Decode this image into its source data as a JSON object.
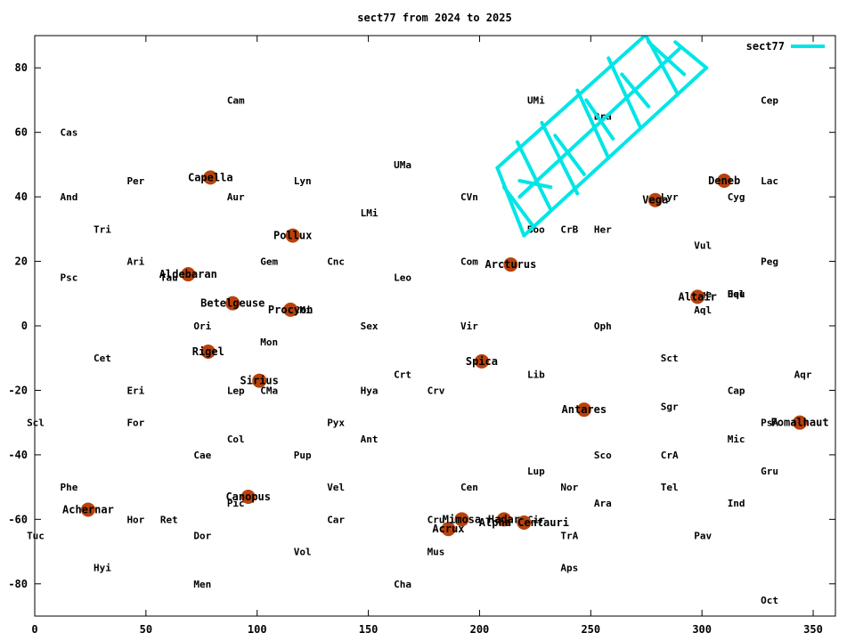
{
  "chart_data": {
    "type": "scatter",
    "title": "sect77 from 2024 to 2025",
    "xlabel": "",
    "ylabel": "",
    "xlim": [
      0,
      360
    ],
    "ylim": [
      -90,
      90
    ],
    "x_ticks": [
      0,
      50,
      100,
      150,
      200,
      250,
      300,
      350
    ],
    "y_ticks": [
      -80,
      -60,
      -40,
      -20,
      0,
      20,
      40,
      60,
      80
    ],
    "grid": false,
    "legend": {
      "position": "top-right",
      "entries": [
        "sect77"
      ]
    },
    "colors": {
      "series": "#00e5e5",
      "star": "#b8420c",
      "frame": "#000000"
    },
    "series": [
      {
        "name": "sect77",
        "segments": [
          [
            [
              208,
              49
            ],
            [
              276,
              91
            ]
          ],
          [
            [
              220,
              28
            ],
            [
              302,
              80
            ]
          ],
          [
            [
              208,
              49
            ],
            [
              220,
              28
            ]
          ],
          [
            [
              211,
              43
            ],
            [
              224,
              31
            ]
          ],
          [
            [
              217,
              57
            ],
            [
              232,
              36
            ]
          ],
          [
            [
              218,
              45
            ],
            [
              232,
              43
            ]
          ],
          [
            [
              228,
              63
            ],
            [
              244,
              41
            ]
          ],
          [
            [
              234,
              59
            ],
            [
              247,
              47
            ]
          ],
          [
            [
              244,
              73
            ],
            [
              258,
              52
            ]
          ],
          [
            [
              248,
              70
            ],
            [
              260,
              58
            ]
          ],
          [
            [
              258,
              83
            ],
            [
              272,
              62
            ]
          ],
          [
            [
              264,
              78
            ],
            [
              276,
              68
            ]
          ],
          [
            [
              274,
              91
            ],
            [
              289,
              72
            ]
          ],
          [
            [
              276,
              88
            ],
            [
              292,
              78
            ]
          ],
          [
            [
              288,
              88
            ],
            [
              302,
              80
            ]
          ],
          [
            [
              218,
              40
            ],
            [
              290,
              86
            ]
          ]
        ]
      }
    ],
    "stars": [
      {
        "name": "Capella",
        "ra": 79,
        "dec": 46
      },
      {
        "name": "Aldebaran",
        "ra": 69,
        "dec": 16
      },
      {
        "name": "Betelgeuse",
        "ra": 89,
        "dec": 7
      },
      {
        "name": "Rigel",
        "ra": 78,
        "dec": -8
      },
      {
        "name": "Sirius",
        "ra": 101,
        "dec": -17
      },
      {
        "name": "Procyon",
        "ra": 115,
        "dec": 5
      },
      {
        "name": "Pollux",
        "ra": 116,
        "dec": 28
      },
      {
        "name": "Canopus",
        "ra": 96,
        "dec": -53
      },
      {
        "name": "Achernar",
        "ra": 24,
        "dec": -57
      },
      {
        "name": "Arcturus",
        "ra": 214,
        "dec": 19
      },
      {
        "name": "Spica",
        "ra": 201,
        "dec": -11
      },
      {
        "name": "Antares",
        "ra": 247,
        "dec": -26
      },
      {
        "name": "Vega",
        "ra": 279,
        "dec": 39
      },
      {
        "name": "Deneb",
        "ra": 310,
        "dec": 45
      },
      {
        "name": "Altair",
        "ra": 298,
        "dec": 9
      },
      {
        "name": "Fomalhaut",
        "ra": 344,
        "dec": -30
      },
      {
        "name": "Acrux",
        "ra": 186,
        "dec": -63
      },
      {
        "name": "Mimosa",
        "ra": 192,
        "dec": -60
      },
      {
        "name": "Hadar",
        "ra": 211,
        "dec": -60
      },
      {
        "name": "Alpha Centauri",
        "ra": 220,
        "dec": -61
      }
    ],
    "constellations": [
      {
        "name": "Cam",
        "ra": 90,
        "dec": 70
      },
      {
        "name": "Cas",
        "ra": 15,
        "dec": 60
      },
      {
        "name": "Per",
        "ra": 45,
        "dec": 45
      },
      {
        "name": "Lyn",
        "ra": 120,
        "dec": 45
      },
      {
        "name": "UMa",
        "ra": 165,
        "dec": 50
      },
      {
        "name": "UMi",
        "ra": 225,
        "dec": 70
      },
      {
        "name": "Dra",
        "ra": 255,
        "dec": 65
      },
      {
        "name": "Cep",
        "ra": 330,
        "dec": 70
      },
      {
        "name": "And",
        "ra": 15,
        "dec": 40
      },
      {
        "name": "Aur",
        "ra": 90,
        "dec": 40
      },
      {
        "name": "CVn",
        "ra": 195,
        "dec": 40
      },
      {
        "name": "Lyr",
        "ra": 285,
        "dec": 40
      },
      {
        "name": "Cyg",
        "ra": 315,
        "dec": 40
      },
      {
        "name": "Lac",
        "ra": 330,
        "dec": 45
      },
      {
        "name": "LMi",
        "ra": 150,
        "dec": 35
      },
      {
        "name": "Tri",
        "ra": 30,
        "dec": 30
      },
      {
        "name": "Boo",
        "ra": 225,
        "dec": 30
      },
      {
        "name": "CrB",
        "ra": 240,
        "dec": 30
      },
      {
        "name": "Her",
        "ra": 255,
        "dec": 30
      },
      {
        "name": "Vul",
        "ra": 300,
        "dec": 25
      },
      {
        "name": "Ari",
        "ra": 45,
        "dec": 20
      },
      {
        "name": "Gem",
        "ra": 105,
        "dec": 20
      },
      {
        "name": "Cnc",
        "ra": 135,
        "dec": 20
      },
      {
        "name": "Com",
        "ra": 195,
        "dec": 20
      },
      {
        "name": "Peg",
        "ra": 330,
        "dec": 20
      },
      {
        "name": "Psc",
        "ra": 15,
        "dec": 15
      },
      {
        "name": "Tau",
        "ra": 60,
        "dec": 15
      },
      {
        "name": "Leo",
        "ra": 165,
        "dec": 15
      },
      {
        "name": "Sge",
        "ra": 300,
        "dec": 10
      },
      {
        "name": "Del",
        "ra": 315,
        "dec": 10
      },
      {
        "name": "Equ",
        "ra": 315,
        "dec": 10
      },
      {
        "name": "CMi",
        "ra": 120,
        "dec": 5
      },
      {
        "name": "Aql",
        "ra": 300,
        "dec": 5
      },
      {
        "name": "Ori",
        "ra": 75,
        "dec": 0
      },
      {
        "name": "Sex",
        "ra": 150,
        "dec": 0
      },
      {
        "name": "Vir",
        "ra": 195,
        "dec": 0
      },
      {
        "name": "Oph",
        "ra": 255,
        "dec": 0
      },
      {
        "name": "Mon",
        "ra": 105,
        "dec": -5
      },
      {
        "name": "Cet",
        "ra": 30,
        "dec": -10
      },
      {
        "name": "Sct",
        "ra": 285,
        "dec": -10
      },
      {
        "name": "Crt",
        "ra": 165,
        "dec": -15
      },
      {
        "name": "Lib",
        "ra": 225,
        "dec": -15
      },
      {
        "name": "Aqr",
        "ra": 345,
        "dec": -15
      },
      {
        "name": "Eri",
        "ra": 45,
        "dec": -20
      },
      {
        "name": "Lep",
        "ra": 90,
        "dec": -20
      },
      {
        "name": "CMa",
        "ra": 105,
        "dec": -20
      },
      {
        "name": "Hya",
        "ra": 150,
        "dec": -20
      },
      {
        "name": "Crv",
        "ra": 180,
        "dec": -20
      },
      {
        "name": "Cap",
        "ra": 315,
        "dec": -20
      },
      {
        "name": "Sgr",
        "ra": 285,
        "dec": -25
      },
      {
        "name": "Scl",
        "ra": 0,
        "dec": -30
      },
      {
        "name": "For",
        "ra": 45,
        "dec": -30
      },
      {
        "name": "Pyx",
        "ra": 135,
        "dec": -30
      },
      {
        "name": "PsA",
        "ra": 330,
        "dec": -30
      },
      {
        "name": "Col",
        "ra": 90,
        "dec": -35
      },
      {
        "name": "Ant",
        "ra": 150,
        "dec": -35
      },
      {
        "name": "Mic",
        "ra": 315,
        "dec": -35
      },
      {
        "name": "Cae",
        "ra": 75,
        "dec": -40
      },
      {
        "name": "Pup",
        "ra": 120,
        "dec": -40
      },
      {
        "name": "Sco",
        "ra": 255,
        "dec": -40
      },
      {
        "name": "CrA",
        "ra": 285,
        "dec": -40
      },
      {
        "name": "Lup",
        "ra": 225,
        "dec": -45
      },
      {
        "name": "Gru",
        "ra": 330,
        "dec": -45
      },
      {
        "name": "Phe",
        "ra": 15,
        "dec": -50
      },
      {
        "name": "Vel",
        "ra": 135,
        "dec": -50
      },
      {
        "name": "Cen",
        "ra": 195,
        "dec": -50
      },
      {
        "name": "Nor",
        "ra": 240,
        "dec": -50
      },
      {
        "name": "Tel",
        "ra": 285,
        "dec": -50
      },
      {
        "name": "Pic",
        "ra": 90,
        "dec": -55
      },
      {
        "name": "Ara",
        "ra": 255,
        "dec": -55
      },
      {
        "name": "Ind",
        "ra": 315,
        "dec": -55
      },
      {
        "name": "Hor",
        "ra": 45,
        "dec": -60
      },
      {
        "name": "Ret",
        "ra": 60,
        "dec": -60
      },
      {
        "name": "Car",
        "ra": 135,
        "dec": -60
      },
      {
        "name": "Cru",
        "ra": 180,
        "dec": -60
      },
      {
        "name": "Cir",
        "ra": 225,
        "dec": -60
      },
      {
        "name": "Tuc",
        "ra": 0,
        "dec": -65
      },
      {
        "name": "Dor",
        "ra": 75,
        "dec": -65
      },
      {
        "name": "TrA",
        "ra": 240,
        "dec": -65
      },
      {
        "name": "Pav",
        "ra": 300,
        "dec": -65
      },
      {
        "name": "Vol",
        "ra": 120,
        "dec": -70
      },
      {
        "name": "Mus",
        "ra": 180,
        "dec": -70
      },
      {
        "name": "Hyi",
        "ra": 30,
        "dec": -75
      },
      {
        "name": "Aps",
        "ra": 240,
        "dec": -75
      },
      {
        "name": "Men",
        "ra": 75,
        "dec": -80
      },
      {
        "name": "Cha",
        "ra": 165,
        "dec": -80
      },
      {
        "name": "Oct",
        "ra": 330,
        "dec": -85
      }
    ]
  }
}
